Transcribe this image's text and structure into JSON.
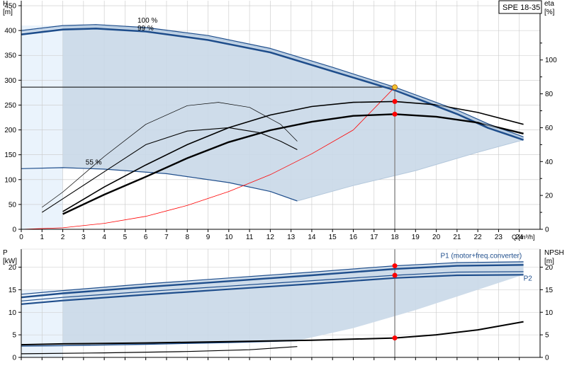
{
  "title_box": "SPE 18-35",
  "chart_data": [
    {
      "type": "line",
      "name": "head-efficiency",
      "x_axis": {
        "label": "Q [m³/h]",
        "range": [
          0,
          25
        ],
        "ticks": [
          0,
          1,
          2,
          3,
          4,
          5,
          6,
          7,
          8,
          9,
          10,
          11,
          12,
          13,
          14,
          15,
          16,
          17,
          18,
          19,
          20,
          21,
          22,
          23,
          24
        ]
      },
      "left_axis": {
        "label_top": "H",
        "label_unit": "[m]",
        "range": [
          0,
          460
        ],
        "ticks": [
          0,
          50,
          100,
          150,
          200,
          250,
          300,
          350,
          400,
          450
        ]
      },
      "right_axis": {
        "label_top": "eta",
        "label_unit": "[%]",
        "range": [
          0,
          135
        ],
        "ticks": [
          0,
          20,
          40,
          60,
          80,
          100
        ]
      },
      "grid": true,
      "labels": [
        {
          "text": "100 %",
          "x": 5.6,
          "y": 410
        },
        {
          "text": "99 %",
          "x": 5.6,
          "y": 400
        },
        {
          "text": "55 %",
          "x": 3.1,
          "y": 130
        }
      ],
      "series": [
        {
          "role": "head-100",
          "color": "#1f4e8c",
          "points": [
            [
              0,
              400
            ],
            [
              2,
              410
            ],
            [
              3.6,
              412
            ],
            [
              6,
              406
            ],
            [
              9,
              390
            ],
            [
              12,
              364
            ],
            [
              15,
              326
            ],
            [
              18,
              286
            ],
            [
              21,
              240
            ],
            [
              22.5,
              212
            ],
            [
              24.2,
              186
            ]
          ]
        },
        {
          "role": "head-99",
          "color": "#1f4e8c",
          "points": [
            [
              0,
              392
            ],
            [
              2,
              402
            ],
            [
              3.6,
              404
            ],
            [
              6,
              398
            ],
            [
              9,
              381
            ],
            [
              12,
              356
            ],
            [
              15,
              318
            ],
            [
              18,
              280
            ],
            [
              21,
              232
            ],
            [
              22.5,
              204
            ],
            [
              24.2,
              180
            ]
          ]
        },
        {
          "role": "head-55",
          "color": "#1f4e8c",
          "points": [
            [
              0,
              122
            ],
            [
              2,
              124
            ],
            [
              4,
              121
            ],
            [
              7,
              112
            ],
            [
              10,
              94
            ],
            [
              12,
              76
            ],
            [
              13.3,
              57
            ]
          ]
        },
        {
          "role": "system-curve",
          "color": "#ff0000",
          "points": [
            [
              0,
              0
            ],
            [
              2,
              3
            ],
            [
              4,
              12
            ],
            [
              6,
              26
            ],
            [
              8,
              48
            ],
            [
              10,
              76
            ],
            [
              12,
              110
            ],
            [
              14,
              152
            ],
            [
              16,
              200
            ],
            [
              18,
              286
            ]
          ]
        },
        {
          "role": "eta-100",
          "color": "#000000",
          "points": [
            [
              2,
              10.5
            ],
            [
              4,
              25
            ],
            [
              6,
              38
            ],
            [
              8,
              50
            ],
            [
              10,
              60
            ],
            [
              12,
              67.5
            ],
            [
              14,
              72.5
            ],
            [
              16,
              75
            ],
            [
              18,
              75.5
            ],
            [
              20,
              73.5
            ],
            [
              22,
              69
            ],
            [
              24.2,
              62
            ]
          ]
        },
        {
          "role": "eta-99",
          "color": "#000000",
          "points": [
            [
              2,
              9
            ],
            [
              4,
              20.5
            ],
            [
              6,
              31
            ],
            [
              8,
              42
            ],
            [
              10,
              51.5
            ],
            [
              12,
              58.5
            ],
            [
              14,
              63.5
            ],
            [
              16,
              67
            ],
            [
              18,
              68
            ],
            [
              20,
              66.5
            ],
            [
              22,
              63
            ],
            [
              24.2,
              56.5
            ]
          ]
        },
        {
          "role": "eta-100-thin",
          "color": "#000000",
          "points": [
            [
              1,
              13
            ],
            [
              2,
              22
            ],
            [
              4,
              43
            ],
            [
              6,
              62
            ],
            [
              8,
              73
            ],
            [
              9.5,
              75
            ],
            [
              11,
              72
            ],
            [
              12.5,
              62
            ],
            [
              13.3,
              52
            ]
          ]
        },
        {
          "role": "eta-55-thin",
          "color": "#000000",
          "points": [
            [
              1,
              10
            ],
            [
              2,
              18
            ],
            [
              4,
              34
            ],
            [
              6,
              50
            ],
            [
              8,
              58
            ],
            [
              10,
              60
            ],
            [
              11.5,
              57
            ],
            [
              12.5,
              52
            ],
            [
              13.3,
              47
            ]
          ]
        }
      ],
      "operating_point": {
        "q": 18,
        "h": 286,
        "eta_upper": 75.5,
        "eta_lower": 68
      }
    },
    {
      "type": "line",
      "name": "power-npsh",
      "left_axis": {
        "label_top": "P",
        "label_unit": "[kW]",
        "range": [
          0,
          24
        ],
        "ticks": [
          0,
          5,
          10,
          15,
          20
        ]
      },
      "right_axis": {
        "label_top": "NPSH",
        "label_unit": "[m]",
        "range": [
          0,
          24
        ],
        "ticks": [
          0,
          5,
          10,
          15,
          20
        ]
      },
      "x_range": [
        0,
        25
      ],
      "grid": true,
      "labels": [
        {
          "text": "P1 (motor+freq.converter)",
          "x": 20.2,
          "y": 22.5
        },
        {
          "text": "P2",
          "x": 24.2,
          "y": 17.5
        }
      ],
      "series": [
        {
          "role": "p1-100",
          "color": "#1f4e8c",
          "points": [
            [
              0,
              14
            ],
            [
              2,
              14.8
            ],
            [
              6,
              16.3
            ],
            [
              10,
              17.6
            ],
            [
              14,
              18.9
            ],
            [
              18,
              20.3
            ],
            [
              21,
              21
            ],
            [
              24.2,
              21.2
            ]
          ]
        },
        {
          "role": "p1-99",
          "color": "#1f4e8c",
          "points": [
            [
              0,
              13.3
            ],
            [
              2,
              14.2
            ],
            [
              6,
              15.6
            ],
            [
              10,
              16.9
            ],
            [
              14,
              18.2
            ],
            [
              18,
              19.6
            ],
            [
              21,
              20.3
            ],
            [
              24.2,
              20.5
            ]
          ]
        },
        {
          "role": "p2-100",
          "color": "#1f4e8c",
          "points": [
            [
              0,
              12.5
            ],
            [
              2,
              13.3
            ],
            [
              6,
              14.6
            ],
            [
              10,
              15.8
            ],
            [
              14,
              17
            ],
            [
              18,
              18.2
            ],
            [
              21,
              18.9
            ],
            [
              24.2,
              19
            ]
          ]
        },
        {
          "role": "p2-99",
          "color": "#1f4e8c",
          "points": [
            [
              0,
              11.8
            ],
            [
              2,
              12.6
            ],
            [
              6,
              13.9
            ],
            [
              10,
              15.1
            ],
            [
              14,
              16.3
            ],
            [
              18,
              17.6
            ],
            [
              21,
              18.2
            ],
            [
              24.2,
              18.3
            ]
          ]
        },
        {
          "role": "p-55",
          "color": "#1f4e8c",
          "points": [
            [
              0,
              2.5
            ],
            [
              2,
              2.6
            ],
            [
              6,
              2.9
            ],
            [
              10,
              3.3
            ],
            [
              13.3,
              3.7
            ]
          ]
        },
        {
          "role": "npsh",
          "color": "#000000",
          "points": [
            [
              0,
              2.8
            ],
            [
              2,
              3
            ],
            [
              6,
              3.2
            ],
            [
              10,
              3.5
            ],
            [
              14,
              3.8
            ],
            [
              18,
              4.3
            ],
            [
              20,
              5
            ],
            [
              22,
              6.1
            ],
            [
              24.2,
              7.9
            ]
          ]
        },
        {
          "role": "npsh-55",
          "color": "#000000",
          "points": [
            [
              0,
              0.8
            ],
            [
              4,
              1
            ],
            [
              8,
              1.3
            ],
            [
              11,
              1.7
            ],
            [
              13.3,
              2.4
            ]
          ]
        }
      ],
      "operating_point": {
        "q": 18,
        "p1": 20.3,
        "p2": 18.2,
        "npsh": 4.3
      }
    }
  ]
}
